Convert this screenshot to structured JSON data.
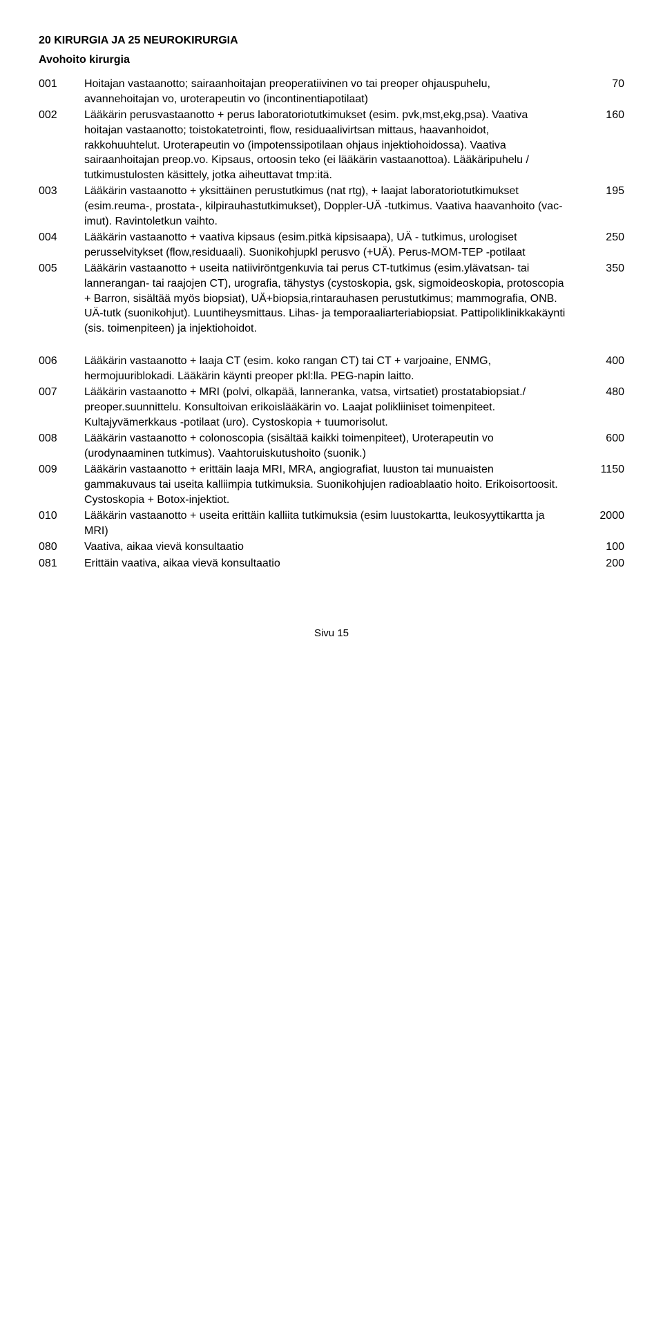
{
  "heading": "20 KIRURGIA JA 25 NEUROKIRURGIA",
  "subheading": "Avohoito kirurgia",
  "items_a": [
    {
      "code": "001",
      "desc": "Hoitajan vastaanotto; sairaanhoitajan preoperatiivinen vo tai preoper ohjauspuhelu, avannehoitajan vo, uroterapeutin vo (incontinentiapotilaat)",
      "value": "70"
    },
    {
      "code": "002",
      "desc": "Lääkärin perusvastaanotto + perus laboratoriotutkimukset (esim. pvk,mst,ekg,psa). Vaativa hoitajan vastaanotto; toistokatetrointi, flow, residuaalivirtsan mittaus, haavanhoidot, rakkohuuhtelut. Uroterapeutin vo (impotenssipotilaan ohjaus injektiohoidossa). Vaativa sairaanhoitajan preop.vo. Kipsaus, ortoosin teko (ei lääkärin vastaanottoa). Lääkäripuhelu / tutkimustulosten käsittely, jotka aiheuttavat tmp:itä.",
      "value": "160"
    },
    {
      "code": "003",
      "desc": "Lääkärin vastaanotto + yksittäinen perustutkimus (nat rtg), + laajat laboratoriotutkimukset (esim.reuma-, prostata-, kilpirauhastutkimukset), Doppler-UÄ -tutkimus. Vaativa haavanhoito (vac-imut). Ravintoletkun vaihto.",
      "value": "195"
    },
    {
      "code": "004",
      "desc": "Lääkärin vastaanotto + vaativa kipsaus (esim.pitkä kipsisaapa), UÄ - tutkimus, urologiset perusselvitykset (flow,residuaali). Suonikohjupkl perusvo (+UÄ). Perus-MOM-TEP -potilaat",
      "value": "250"
    },
    {
      "code": "005",
      "desc": "Lääkärin vastaanotto + useita natiiviröntgenkuvia tai perus CT-tutkimus (esim.ylävatsan- tai lannerangan- tai raajojen CT), urografia, tähystys (cystoskopia, gsk, sigmoideoskopia, protoscopia + Barron, sisältää myös biopsiat), UÄ+biopsia,rintarauhasen perustutkimus; mammografia, ONB. UÄ-tutk (suonikohjut). Luuntiheysmittaus. Lihas- ja temporaaliarteriabiopsiat. Pattipoliklinikkakäynti (sis. toimenpiteen) ja injektiohoidot.",
      "value": "350"
    }
  ],
  "items_b": [
    {
      "code": "006",
      "desc": "Lääkärin vastaanotto +  laaja CT (esim. koko rangan CT) tai CT + varjoaine, ENMG, hermojuuriblokadi.  Lääkärin käynti preoper pkl:lla. PEG-napin laitto.",
      "value": "400"
    },
    {
      "code": "007",
      "desc": "Lääkärin vastaanotto  + MRI (polvi, olkapää, lanneranka, vatsa, virtsatiet) prostatabiopsiat./ preoper.suunnittelu.  Konsultoivan erikoislääkärin vo. Laajat polikliiniset toimenpiteet. Kultajyvämerkkaus -potilaat (uro). Cystoskopia + tuumorisolut.",
      "value": "480"
    },
    {
      "code": "008",
      "desc": "Lääkärin vastaanotto + colonoscopia (sisältää kaikki toimenpiteet), Uroterapeutin vo (urodynaaminen tutkimus). Vaahtoruiskutushoito (suonik.)",
      "value": "600"
    },
    {
      "code": "009",
      "desc": "Lääkärin vastaanotto + erittäin laaja MRI, MRA, angiografiat, luuston tai munuaisten gammakuvaus tai useita kalliimpia tutkimuksia. Suonikohjujen radioablaatio hoito. Erikoisortoosit. Cystoskopia + Botox-injektiot.",
      "value": "1150"
    },
    {
      "code": "010",
      "desc": "Lääkärin vastaanotto + useita erittäin kalliita tutkimuksia (esim luustokartta, leukosyyttikartta ja MRI)",
      "value": "2000"
    },
    {
      "code": "080",
      "desc": "Vaativa, aikaa vievä konsultaatio",
      "value": "100"
    },
    {
      "code": "081",
      "desc": "Erittäin vaativa, aikaa vievä konsultaatio",
      "value": "200"
    }
  ],
  "footer": "Sivu 15"
}
